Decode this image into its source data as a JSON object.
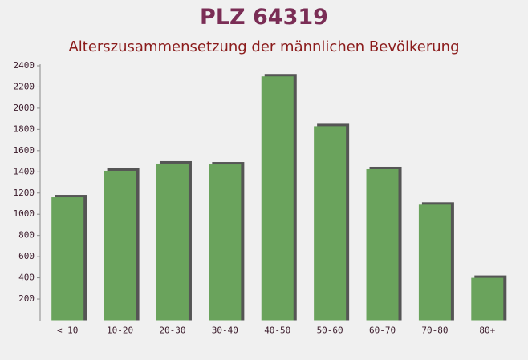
{
  "chart_data": {
    "type": "bar",
    "title": "PLZ 64319",
    "subtitle": "Alterszusammensetzung der männlichen Bevölkerung",
    "categories": [
      "< 10",
      "10-20",
      "20-30",
      "30-40",
      "40-50",
      "50-60",
      "60-70",
      "70-80",
      "80+"
    ],
    "values": [
      1160,
      1410,
      1478,
      1470,
      2300,
      1830,
      1425,
      1090,
      400
    ],
    "color": "#6aa35c",
    "ylim": [
      0,
      2400
    ],
    "yticks": [
      200,
      400,
      600,
      800,
      1000,
      1200,
      1400,
      1600,
      1800,
      2000,
      2200,
      2400
    ],
    "grid": false
  }
}
